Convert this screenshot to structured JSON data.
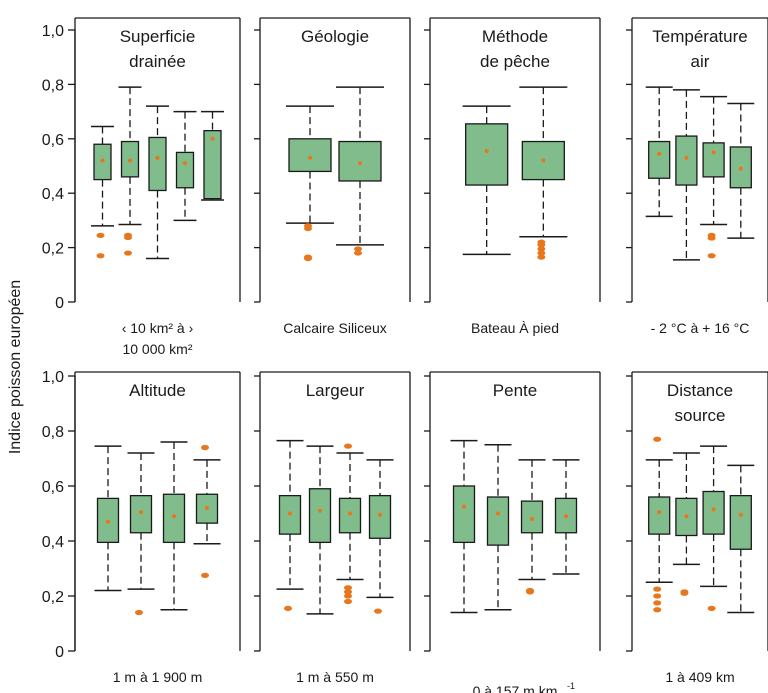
{
  "chart_data": {
    "type": "box",
    "ylabel": "Indice poisson européen",
    "ylim": [
      0,
      1
    ],
    "yticks": [
      "0",
      "0,2",
      "0,4",
      "0,6",
      "0,8",
      "1,0"
    ],
    "colors": {
      "box": "#80bc8c",
      "mean": "#e8761c",
      "outlier": "#e8761c",
      "line": "#1a1a1a"
    },
    "panels": [
      {
        "title": [
          "Superficie",
          "drainée"
        ],
        "xlabel": [
          "‹ 10 km² à ›",
          "10 000 km²"
        ],
        "boxes": [
          {
            "whisker_low": 0.28,
            "q1": 0.45,
            "median": 0.52,
            "q3": 0.58,
            "whisker_high": 0.645,
            "mean": 0.52,
            "outliers": [
              0.245,
              0.17
            ]
          },
          {
            "whisker_low": 0.285,
            "q1": 0.46,
            "median": 0.52,
            "q3": 0.59,
            "whisker_high": 0.79,
            "mean": 0.52,
            "outliers": [
              0.245,
              0.237,
              0.18
            ]
          },
          {
            "whisker_low": 0.16,
            "q1": 0.41,
            "median": 0.53,
            "q3": 0.605,
            "whisker_high": 0.72,
            "mean": 0.53,
            "outliers": []
          },
          {
            "whisker_low": 0.3,
            "q1": 0.42,
            "median": 0.51,
            "q3": 0.55,
            "whisker_high": 0.7,
            "mean": 0.51,
            "outliers": []
          },
          {
            "whisker_low": 0.375,
            "q1": 0.38,
            "median": 0.6,
            "q3": 0.63,
            "whisker_high": 0.7,
            "mean": 0.6,
            "outliers": []
          }
        ]
      },
      {
        "title": [
          "Géologie"
        ],
        "xlabel": [
          "Calcaire  Siliceux"
        ],
        "boxes": [
          {
            "whisker_low": 0.29,
            "q1": 0.48,
            "median": 0.53,
            "q3": 0.6,
            "whisker_high": 0.72,
            "mean": 0.53,
            "outliers": [
              0.28,
              0.27,
              0.165,
              0.16
            ]
          },
          {
            "whisker_low": 0.21,
            "q1": 0.445,
            "median": 0.51,
            "q3": 0.59,
            "whisker_high": 0.79,
            "mean": 0.51,
            "outliers": [
              0.195,
              0.18
            ]
          }
        ]
      },
      {
        "title": [
          "Méthode",
          "de pêche"
        ],
        "xlabel": [
          "Bateau   À pied"
        ],
        "boxes": [
          {
            "whisker_low": 0.175,
            "q1": 0.43,
            "median": 0.555,
            "q3": 0.655,
            "whisker_high": 0.72,
            "mean": 0.555,
            "outliers": []
          },
          {
            "whisker_low": 0.24,
            "q1": 0.45,
            "median": 0.52,
            "q3": 0.59,
            "whisker_high": 0.79,
            "mean": 0.52,
            "outliers": [
              0.22,
              0.21,
              0.195,
              0.18,
              0.165
            ]
          }
        ]
      },
      {
        "title": [
          "Température",
          "air"
        ],
        "xlabel": [
          "- 2 °C à  + 16 °C"
        ],
        "boxes": [
          {
            "whisker_low": 0.315,
            "q1": 0.455,
            "median": 0.545,
            "q3": 0.59,
            "whisker_high": 0.79,
            "mean": 0.545,
            "outliers": []
          },
          {
            "whisker_low": 0.155,
            "q1": 0.43,
            "median": 0.53,
            "q3": 0.61,
            "whisker_high": 0.78,
            "mean": 0.53,
            "outliers": []
          },
          {
            "whisker_low": 0.285,
            "q1": 0.46,
            "median": 0.55,
            "q3": 0.585,
            "whisker_high": 0.755,
            "mean": 0.55,
            "outliers": [
              0.245,
              0.235,
              0.17
            ]
          },
          {
            "whisker_low": 0.235,
            "q1": 0.42,
            "median": 0.49,
            "q3": 0.57,
            "whisker_high": 0.73,
            "mean": 0.49,
            "outliers": []
          }
        ]
      },
      {
        "title": [
          "Altitude"
        ],
        "xlabel": [
          "1 m à 1 900 m"
        ],
        "boxes": [
          {
            "whisker_low": 0.22,
            "q1": 0.395,
            "median": 0.47,
            "q3": 0.555,
            "whisker_high": 0.745,
            "mean": 0.47,
            "outliers": []
          },
          {
            "whisker_low": 0.225,
            "q1": 0.43,
            "median": 0.505,
            "q3": 0.565,
            "whisker_high": 0.72,
            "mean": 0.505,
            "outliers": [
              0.14
            ]
          },
          {
            "whisker_low": 0.15,
            "q1": 0.395,
            "median": 0.49,
            "q3": 0.57,
            "whisker_high": 0.76,
            "mean": 0.49,
            "outliers": []
          },
          {
            "whisker_low": 0.39,
            "q1": 0.465,
            "median": 0.52,
            "q3": 0.57,
            "whisker_high": 0.695,
            "mean": 0.52,
            "outliers": [
              0.74,
              0.275
            ]
          }
        ]
      },
      {
        "title": [
          "Largeur"
        ],
        "xlabel": [
          "1 m à 550 m"
        ],
        "boxes": [
          {
            "whisker_low": 0.225,
            "q1": 0.425,
            "median": 0.5,
            "q3": 0.565,
            "whisker_high": 0.765,
            "mean": 0.5,
            "outliers": [
              0.155
            ]
          },
          {
            "whisker_low": 0.135,
            "q1": 0.395,
            "median": 0.51,
            "q3": 0.59,
            "whisker_high": 0.745,
            "mean": 0.51,
            "outliers": []
          },
          {
            "whisker_low": 0.26,
            "q1": 0.43,
            "median": 0.5,
            "q3": 0.555,
            "whisker_high": 0.72,
            "mean": 0.5,
            "outliers": [
              0.745,
              0.23,
              0.215,
              0.2,
              0.18
            ]
          },
          {
            "whisker_low": 0.195,
            "q1": 0.41,
            "median": 0.495,
            "q3": 0.565,
            "whisker_high": 0.695,
            "mean": 0.495,
            "outliers": [
              0.145
            ]
          }
        ]
      },
      {
        "title": [
          "Pente"
        ],
        "xlabel": [
          "0 à 157 m.km",
          "-1"
        ],
        "boxes": [
          {
            "whisker_low": 0.14,
            "q1": 0.395,
            "median": 0.525,
            "q3": 0.6,
            "whisker_high": 0.765,
            "mean": 0.525,
            "outliers": []
          },
          {
            "whisker_low": 0.15,
            "q1": 0.385,
            "median": 0.5,
            "q3": 0.56,
            "whisker_high": 0.75,
            "mean": 0.5,
            "outliers": []
          },
          {
            "whisker_low": 0.26,
            "q1": 0.43,
            "median": 0.48,
            "q3": 0.545,
            "whisker_high": 0.695,
            "mean": 0.48,
            "outliers": [
              0.22,
              0.215
            ]
          },
          {
            "whisker_low": 0.28,
            "q1": 0.43,
            "median": 0.49,
            "q3": 0.555,
            "whisker_high": 0.695,
            "mean": 0.49,
            "outliers": []
          }
        ]
      },
      {
        "title": [
          "Distance",
          "source"
        ],
        "xlabel": [
          "1 à 409 km"
        ],
        "boxes": [
          {
            "whisker_low": 0.25,
            "q1": 0.425,
            "median": 0.505,
            "q3": 0.56,
            "whisker_high": 0.695,
            "mean": 0.505,
            "outliers": [
              0.77,
              0.225,
              0.2,
              0.175,
              0.15
            ]
          },
          {
            "whisker_low": 0.315,
            "q1": 0.42,
            "median": 0.49,
            "q3": 0.555,
            "whisker_high": 0.72,
            "mean": 0.49,
            "outliers": [
              0.215,
              0.21
            ]
          },
          {
            "whisker_low": 0.235,
            "q1": 0.425,
            "median": 0.515,
            "q3": 0.58,
            "whisker_high": 0.745,
            "mean": 0.515,
            "outliers": [
              0.155
            ]
          },
          {
            "whisker_low": 0.14,
            "q1": 0.37,
            "median": 0.495,
            "q3": 0.565,
            "whisker_high": 0.675,
            "mean": 0.495,
            "outliers": []
          }
        ]
      }
    ]
  }
}
